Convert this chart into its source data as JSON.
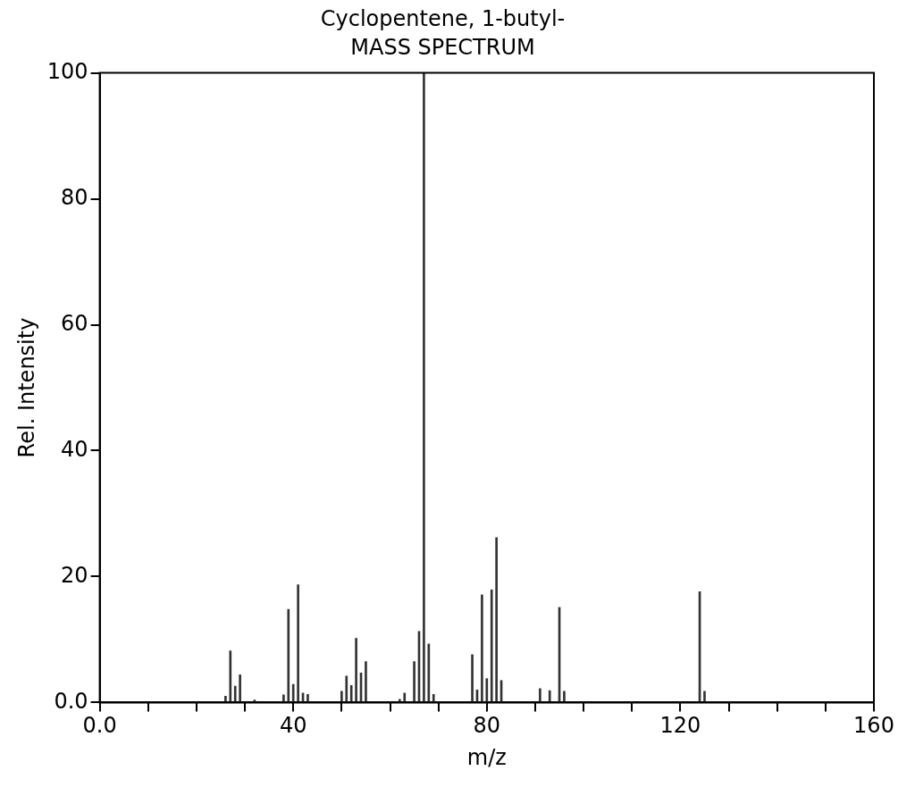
{
  "chart_data": {
    "type": "bar",
    "title": "Cyclopentene, 1-butyl-",
    "subtitle": "MASS SPECTRUM",
    "xlabel": "m/z",
    "ylabel": "Rel. Intensity",
    "x": [
      26,
      27,
      28,
      29,
      32,
      38,
      39,
      40,
      41,
      42,
      43,
      50,
      51,
      52,
      53,
      54,
      55,
      62,
      63,
      65,
      66,
      67,
      68,
      69,
      77,
      78,
      79,
      80,
      81,
      82,
      83,
      91,
      93,
      95,
      96,
      124,
      125
    ],
    "values": [
      1,
      8.2,
      2.6,
      4.4,
      0.4,
      1.2,
      14.8,
      2.9,
      18.7,
      1.5,
      1.3,
      1.8,
      4.2,
      2.7,
      10.2,
      4.7,
      6.5,
      0.5,
      1.5,
      6.5,
      11.3,
      100,
      9.3,
      1.3,
      7.6,
      2,
      17.1,
      3.8,
      17.9,
      26.2,
      3.5,
      2.2,
      1.9,
      15.1,
      1.8,
      17.6,
      1.8
    ],
    "color": "#333333",
    "xlim": [
      0,
      160
    ],
    "xticks": [
      {
        "value": 0,
        "label": "0.0"
      },
      {
        "value": 10,
        "label": null
      },
      {
        "value": 20,
        "label": null
      },
      {
        "value": 30,
        "label": null
      },
      40,
      {
        "value": 50,
        "label": null
      },
      {
        "value": 60,
        "label": null
      },
      {
        "value": 70,
        "label": null
      },
      80,
      {
        "value": 90,
        "label": null
      },
      {
        "value": 100,
        "label": null
      },
      {
        "value": 110,
        "label": null
      },
      120,
      {
        "value": 130,
        "label": null
      },
      {
        "value": 140,
        "label": null
      },
      {
        "value": 150,
        "label": null
      },
      160
    ],
    "ylim": [
      0,
      100
    ],
    "yticks": [
      {
        "value": 0,
        "label": "0.0"
      },
      20,
      40,
      60,
      80,
      100
    ],
    "grid": false,
    "legend": false
  }
}
